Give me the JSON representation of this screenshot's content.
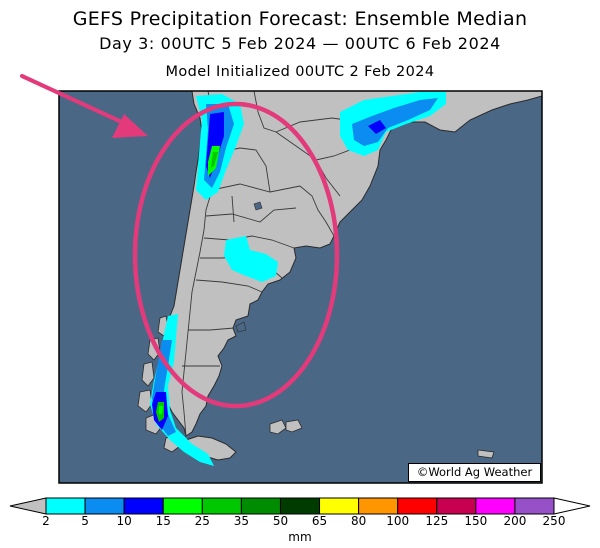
{
  "header": {
    "title": "GEFS Precipitation Forecast: Ensemble Median",
    "subtitle": "Day 3: 00UTC 5 Feb 2024 — 00UTC 6 Feb 2024",
    "initialized": "Model Initialized 00UTC 2 Feb 2024"
  },
  "map": {
    "credit": "©World Ag Weather",
    "colors": {
      "ocean": "#4a6886",
      "land": "#c0c0c0",
      "border": "#3a3a3a",
      "annotation": "#e23a7a"
    },
    "annotations": [
      "arrow",
      "ellipse"
    ]
  },
  "legend": {
    "unit": "mm",
    "ticks": [
      "2",
      "5",
      "10",
      "15",
      "25",
      "35",
      "50",
      "65",
      "80",
      "100",
      "125",
      "150",
      "200",
      "250"
    ],
    "bins": [
      {
        "from": 2,
        "to": 5,
        "color": "#00ffff"
      },
      {
        "from": 5,
        "to": 10,
        "color": "#0a8cf0"
      },
      {
        "from": 10,
        "to": 15,
        "color": "#0000ff"
      },
      {
        "from": 15,
        "to": 25,
        "color": "#00ff00"
      },
      {
        "from": 25,
        "to": 35,
        "color": "#00c800"
      },
      {
        "from": 35,
        "to": 50,
        "color": "#008c00"
      },
      {
        "from": 50,
        "to": 65,
        "color": "#003c00"
      },
      {
        "from": 65,
        "to": 80,
        "color": "#ffff00"
      },
      {
        "from": 80,
        "to": 100,
        "color": "#ff9600"
      },
      {
        "from": 100,
        "to": 125,
        "color": "#ff0000"
      },
      {
        "from": 125,
        "to": 150,
        "color": "#c80050"
      },
      {
        "from": 150,
        "to": 200,
        "color": "#ff00ff"
      },
      {
        "from": 200,
        "to": 250,
        "color": "#9650c8"
      }
    ],
    "under_color": "#c0c0c0",
    "over_color": "#ffffff"
  }
}
